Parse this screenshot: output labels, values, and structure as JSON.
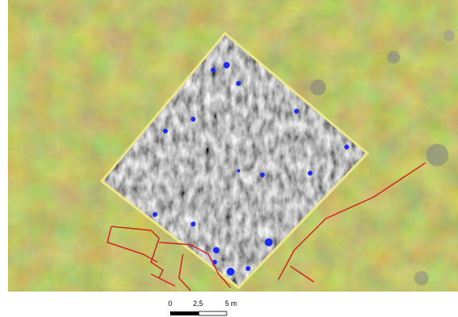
{
  "scale_bar": {
    "labels": [
      "0",
      "2,5",
      "5 m"
    ]
  }
}
